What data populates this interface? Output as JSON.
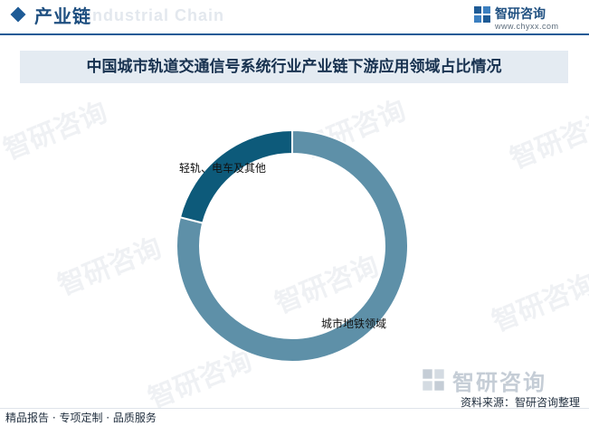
{
  "header": {
    "section_title": "产业链",
    "ghost_text": "Industrial Chain",
    "brand_name": "智研咨询",
    "brand_url": "www.chyxx.com"
  },
  "chart_data": {
    "type": "pie",
    "title": "中国城市轨道交通信号系统行业产业链下游应用领域占比情况",
    "categories": [
      "城市地铁领域",
      "轻轨、电车及其他"
    ],
    "values": [
      79,
      21
    ],
    "unit": "%",
    "colors": [
      "#5e90a8",
      "#0d5a7a"
    ],
    "donut": true
  },
  "footer": {
    "brand_name": "智研咨询",
    "source": "资料来源：智研咨询整理",
    "services": "精品报告 · 专项定制 · 品质服务"
  },
  "watermark_text": "智研咨询"
}
